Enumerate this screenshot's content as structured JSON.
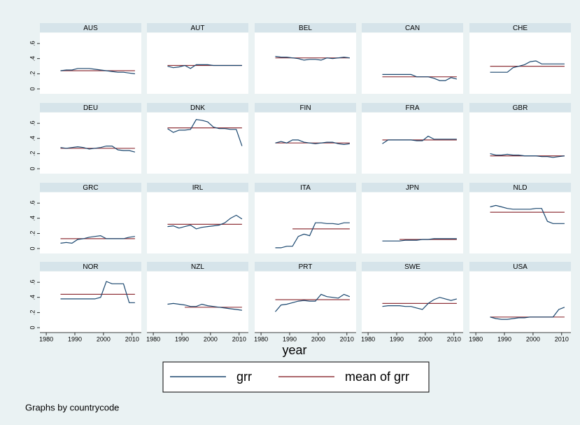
{
  "chart_data": {
    "type": "line",
    "x": [
      1985,
      1987,
      1989,
      1991,
      1993,
      1995,
      1997,
      1999,
      2001,
      2003,
      2005,
      2007,
      2009,
      2011
    ],
    "xlim": [
      1979,
      2012
    ],
    "xticks": [
      1980,
      1990,
      2000,
      2010
    ],
    "ylim": [
      -0.065,
      0.74
    ],
    "yticks": [
      0,
      {
        "value": 0.2,
        "label": ".2"
      },
      {
        "value": 0.4,
        "label": ".4"
      },
      {
        "value": 0.6,
        "label": ".6"
      }
    ],
    "xlabel": "year",
    "legend": [
      {
        "name": "grr",
        "color": "#1a476f"
      },
      {
        "name": "mean of grr",
        "color": "#90353b"
      }
    ],
    "note": "Graphs by countrycode",
    "panels": [
      {
        "title": "AUS",
        "grr": [
          0.24,
          0.25,
          0.25,
          0.27,
          0.27,
          0.27,
          0.26,
          0.25,
          0.24,
          0.23,
          0.22,
          0.22,
          0.21,
          0.2
        ],
        "mean": [
          0.24,
          0.24,
          0.24,
          0.24,
          0.24,
          0.24,
          0.24,
          0.24,
          0.24,
          0.24,
          0.24,
          0.24,
          0.24,
          0.24
        ]
      },
      {
        "title": "AUT",
        "grr": [
          0.3,
          0.28,
          0.29,
          0.31,
          0.27,
          0.32,
          0.32,
          0.32,
          0.31,
          0.31,
          0.31,
          0.31,
          0.31,
          0.31
        ],
        "mean": [
          0.31,
          0.31,
          0.31,
          0.31,
          0.31,
          0.31,
          0.31,
          0.31,
          0.31,
          0.31,
          0.31,
          0.31,
          0.31,
          0.31
        ]
      },
      {
        "title": "BEL",
        "grr": [
          0.43,
          0.42,
          0.42,
          0.41,
          0.4,
          0.38,
          0.39,
          0.39,
          0.38,
          0.41,
          0.4,
          0.41,
          0.42,
          0.41
        ],
        "mean": [
          0.41,
          0.41,
          0.41,
          0.41,
          0.41,
          0.41,
          0.41,
          0.41,
          0.41,
          0.41,
          0.41,
          0.41,
          0.41,
          0.41
        ]
      },
      {
        "title": "CAN",
        "grr": [
          0.19,
          0.19,
          0.19,
          0.19,
          0.19,
          0.19,
          0.16,
          0.16,
          0.16,
          0.14,
          0.11,
          0.11,
          0.15,
          0.13
        ],
        "mean": [
          0.16,
          0.16,
          0.16,
          0.16,
          0.16,
          0.16,
          0.16,
          0.16,
          0.16,
          0.16,
          0.16,
          0.16,
          0.16,
          0.16
        ]
      },
      {
        "title": "CHE",
        "grr": [
          0.22,
          0.22,
          0.22,
          0.22,
          0.28,
          0.3,
          0.32,
          0.36,
          0.37,
          0.33,
          0.33,
          0.33,
          0.33,
          0.33
        ],
        "mean": [
          0.3,
          0.3,
          0.3,
          0.3,
          0.3,
          0.3,
          0.3,
          0.3,
          0.3,
          0.3,
          0.3,
          0.3,
          0.3,
          0.3
        ]
      },
      {
        "title": "DEU",
        "grr": [
          0.28,
          0.27,
          0.28,
          0.29,
          0.28,
          0.26,
          0.27,
          0.28,
          0.3,
          0.3,
          0.25,
          0.24,
          0.24,
          0.22
        ],
        "mean": [
          0.27,
          0.27,
          0.27,
          0.27,
          0.27,
          0.27,
          0.27,
          0.27,
          0.27,
          0.27,
          0.27,
          0.27,
          0.27,
          0.27
        ]
      },
      {
        "title": "DNK",
        "grr": [
          0.53,
          0.48,
          0.51,
          0.51,
          0.52,
          0.65,
          0.64,
          0.62,
          0.55,
          0.53,
          0.53,
          0.52,
          0.52,
          0.3
        ],
        "mean": [
          0.54,
          0.54,
          0.54,
          0.54,
          0.54,
          0.54,
          0.54,
          0.54,
          0.54,
          0.54,
          0.54,
          0.54,
          0.54,
          0.54
        ]
      },
      {
        "title": "FIN",
        "grr": [
          0.34,
          0.36,
          0.34,
          0.38,
          0.38,
          0.35,
          0.34,
          0.33,
          0.34,
          0.35,
          0.35,
          0.33,
          0.32,
          0.33
        ],
        "mean": [
          0.34,
          0.34,
          0.34,
          0.34,
          0.34,
          0.34,
          0.34,
          0.34,
          0.34,
          0.34,
          0.34,
          0.34,
          0.34,
          0.34
        ]
      },
      {
        "title": "FRA",
        "grr": [
          0.33,
          0.38,
          0.38,
          0.38,
          0.38,
          0.38,
          0.37,
          0.37,
          0.43,
          0.39,
          0.39,
          0.39,
          0.39,
          0.39
        ],
        "mean": [
          0.38,
          0.38,
          0.38,
          0.38,
          0.38,
          0.38,
          0.38,
          0.38,
          0.38,
          0.38,
          0.38,
          0.38,
          0.38,
          0.38
        ]
      },
      {
        "title": "GBR",
        "grr": [
          0.2,
          0.18,
          0.18,
          0.19,
          0.18,
          0.18,
          0.17,
          0.17,
          0.17,
          0.16,
          0.16,
          0.15,
          0.16,
          0.17
        ],
        "mean": [
          0.17,
          0.17,
          0.17,
          0.17,
          0.17,
          0.17,
          0.17,
          0.17,
          0.17,
          0.17,
          0.17,
          0.17,
          0.17,
          0.17
        ]
      },
      {
        "title": "GRC",
        "grr": [
          0.07,
          0.08,
          0.07,
          0.12,
          0.13,
          0.15,
          0.16,
          0.17,
          0.13,
          0.13,
          0.13,
          0.13,
          0.15,
          0.16
        ],
        "mean": [
          0.13,
          0.13,
          0.13,
          0.13,
          0.13,
          0.13,
          0.13,
          0.13,
          0.13,
          0.13,
          0.13,
          0.13,
          0.13,
          0.13
        ]
      },
      {
        "title": "IRL",
        "grr": [
          0.29,
          0.3,
          0.27,
          0.29,
          0.31,
          0.26,
          0.28,
          0.29,
          0.3,
          0.31,
          0.34,
          0.4,
          0.44,
          0.39
        ],
        "mean": [
          0.32,
          0.32,
          0.32,
          0.32,
          0.32,
          0.32,
          0.32,
          0.32,
          0.32,
          0.32,
          0.32,
          0.32,
          0.32,
          0.32
        ]
      },
      {
        "title": "ITA",
        "grr": [
          0.01,
          0.01,
          0.03,
          0.03,
          0.16,
          0.19,
          0.17,
          0.34,
          0.34,
          0.33,
          0.33,
          0.32,
          0.34,
          0.34
        ],
        "mean": [
          null,
          null,
          null,
          0.26,
          0.26,
          0.26,
          0.26,
          0.26,
          0.26,
          0.26,
          0.26,
          0.26,
          0.26,
          0.26
        ]
      },
      {
        "title": "JPN",
        "grr": [
          0.1,
          0.1,
          0.1,
          0.1,
          0.11,
          0.11,
          0.11,
          0.12,
          0.12,
          0.13,
          0.13,
          0.13,
          0.13,
          0.13
        ],
        "mean": [
          null,
          null,
          null,
          0.12,
          0.12,
          0.12,
          0.12,
          0.12,
          0.12,
          0.12,
          0.12,
          0.12,
          0.12,
          0.12
        ]
      },
      {
        "title": "NLD",
        "grr": [
          0.55,
          0.57,
          0.55,
          0.53,
          0.52,
          0.52,
          0.52,
          0.52,
          0.53,
          0.53,
          0.36,
          0.33,
          0.33,
          0.33
        ],
        "mean": [
          0.48,
          0.48,
          0.48,
          0.48,
          0.48,
          0.48,
          0.48,
          0.48,
          0.48,
          0.48,
          0.48,
          0.48,
          0.48,
          0.48
        ]
      },
      {
        "title": "NOR",
        "grr": [
          0.38,
          0.38,
          0.38,
          0.38,
          0.38,
          0.38,
          0.38,
          0.4,
          0.61,
          0.58,
          0.58,
          0.58,
          0.33,
          0.33
        ],
        "mean": [
          0.44,
          0.44,
          0.44,
          0.44,
          0.44,
          0.44,
          0.44,
          0.44,
          0.44,
          0.44,
          0.44,
          0.44,
          0.44,
          0.44
        ]
      },
      {
        "title": "NZL",
        "grr": [
          0.31,
          0.32,
          0.31,
          0.3,
          0.28,
          0.28,
          0.31,
          0.29,
          0.28,
          0.27,
          0.26,
          0.25,
          0.24,
          0.23
        ],
        "mean": [
          null,
          null,
          null,
          0.27,
          0.27,
          0.27,
          0.27,
          0.27,
          0.27,
          0.27,
          0.27,
          0.27,
          0.27,
          0.27
        ]
      },
      {
        "title": "PRT",
        "grr": [
          0.21,
          0.3,
          0.31,
          0.33,
          0.35,
          0.36,
          0.35,
          0.35,
          0.44,
          0.41,
          0.4,
          0.39,
          0.44,
          0.41
        ],
        "mean": [
          0.37,
          0.37,
          0.37,
          0.37,
          0.37,
          0.37,
          0.37,
          0.37,
          0.37,
          0.37,
          0.37,
          0.37,
          0.37,
          0.37
        ]
      },
      {
        "title": "SWE",
        "grr": [
          0.28,
          0.29,
          0.29,
          0.29,
          0.28,
          0.28,
          0.26,
          0.24,
          0.32,
          0.37,
          0.4,
          0.38,
          0.36,
          0.38
        ],
        "mean": [
          0.32,
          0.32,
          0.32,
          0.32,
          0.32,
          0.32,
          0.32,
          0.32,
          0.32,
          0.32,
          0.32,
          0.32,
          0.32,
          0.32
        ]
      },
      {
        "title": "USA",
        "grr": [
          0.14,
          0.12,
          0.11,
          0.11,
          0.12,
          0.13,
          0.13,
          0.14,
          0.14,
          0.14,
          0.14,
          0.14,
          0.24,
          0.27
        ],
        "mean": [
          0.14,
          0.14,
          0.14,
          0.14,
          0.14,
          0.14,
          0.14,
          0.14,
          0.14,
          0.14,
          0.14,
          0.14,
          0.14,
          0.14
        ]
      }
    ]
  }
}
